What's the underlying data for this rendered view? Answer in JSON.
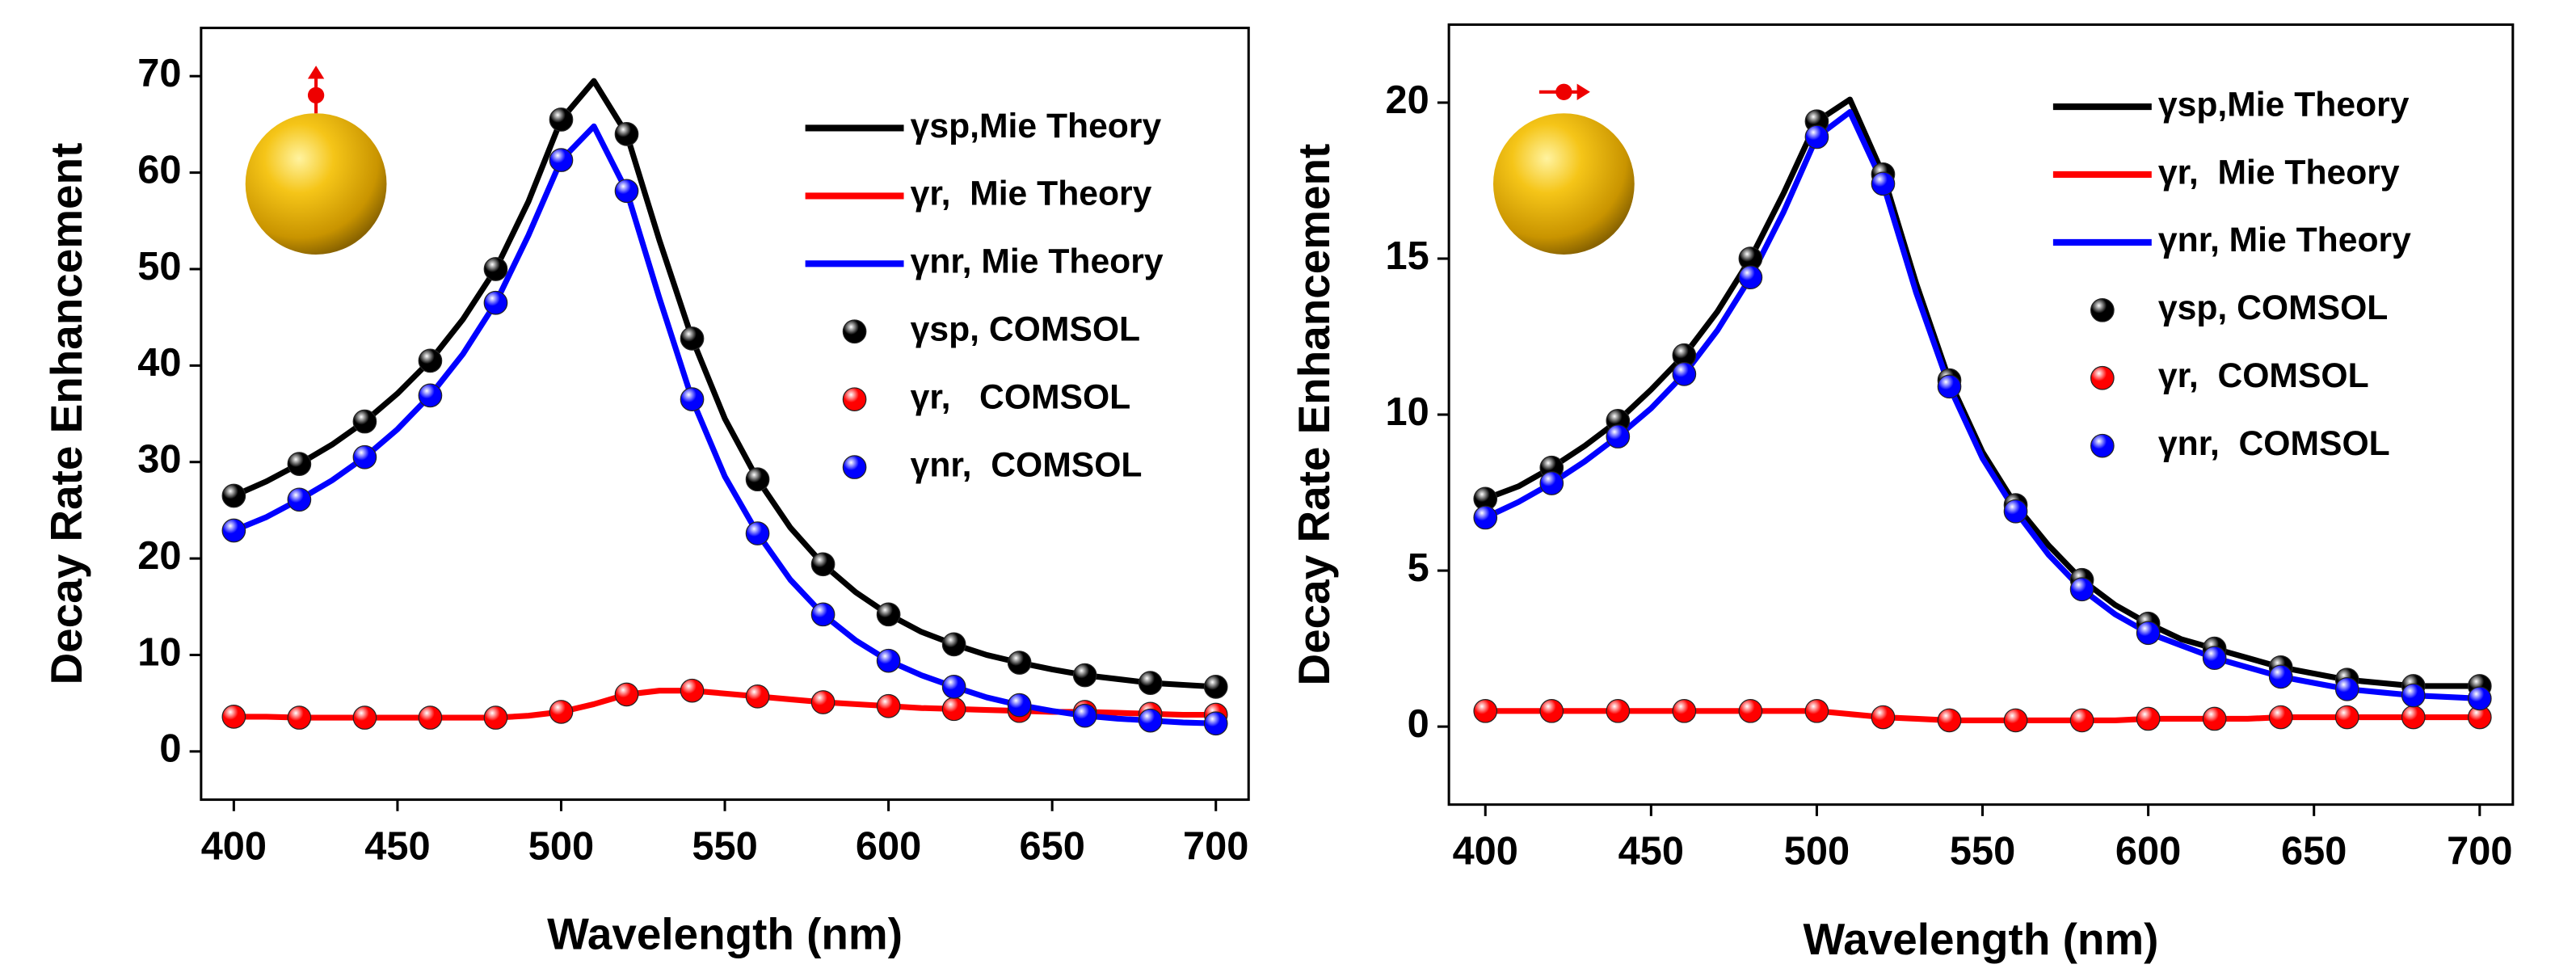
{
  "chart_data": [
    {
      "type": "line",
      "ylabel": "Decay Rate Enhancement",
      "xlabel": "Wavelength (nm)",
      "xlim": [
        390,
        710
      ],
      "ylim": [
        -5,
        75
      ],
      "xticks": [
        400,
        450,
        500,
        550,
        600,
        650,
        700
      ],
      "yticks": [
        0,
        10,
        20,
        30,
        40,
        50,
        60,
        70
      ],
      "legend": "upper right",
      "series": [
        {
          "name": "γsp,Mie Theory",
          "mode": "line",
          "color": "#000000",
          "x": [
            400,
            410,
            420,
            430,
            440,
            450,
            460,
            470,
            480,
            490,
            500,
            510,
            520,
            530,
            540,
            550,
            560,
            570,
            580,
            590,
            600,
            610,
            620,
            630,
            640,
            650,
            660,
            670,
            680,
            690,
            700
          ],
          "values": [
            26.5,
            28,
            29.8,
            31.8,
            34.2,
            37.1,
            40.5,
            44.8,
            50,
            57,
            65.5,
            69.5,
            64,
            53,
            42.8,
            34.5,
            28.2,
            23.2,
            19.4,
            16.5,
            14.2,
            12.4,
            11.1,
            10,
            9.2,
            8.5,
            7.9,
            7.5,
            7.1,
            6.9,
            6.7
          ]
        },
        {
          "name": "γr,  Mie Theory",
          "mode": "line",
          "color": "#ff0000",
          "x": [
            400,
            410,
            420,
            430,
            440,
            450,
            460,
            470,
            480,
            490,
            500,
            510,
            520,
            530,
            540,
            550,
            560,
            570,
            580,
            590,
            600,
            610,
            620,
            630,
            640,
            650,
            660,
            670,
            680,
            690,
            700
          ],
          "values": [
            3.6,
            3.6,
            3.5,
            3.5,
            3.5,
            3.5,
            3.5,
            3.5,
            3.5,
            3.7,
            4.1,
            4.9,
            5.9,
            6.3,
            6.3,
            6,
            5.7,
            5.4,
            5.1,
            4.9,
            4.7,
            4.5,
            4.4,
            4.3,
            4.2,
            4.1,
            4.1,
            4,
            3.9,
            3.8,
            3.8
          ]
        },
        {
          "name": "γnr, Mie Theory",
          "mode": "line",
          "color": "#0000ff",
          "x": [
            400,
            410,
            420,
            430,
            440,
            450,
            460,
            470,
            480,
            490,
            500,
            510,
            520,
            530,
            540,
            550,
            560,
            570,
            580,
            590,
            600,
            610,
            620,
            630,
            640,
            650,
            660,
            670,
            680,
            690,
            700
          ],
          "values": [
            22.9,
            24.3,
            26.1,
            28.1,
            30.5,
            33.4,
            36.9,
            41.2,
            46.5,
            53.5,
            61.3,
            64.8,
            58.1,
            47,
            36.5,
            28.5,
            22.6,
            17.8,
            14.2,
            11.5,
            9.4,
            7.9,
            6.7,
            5.6,
            4.8,
            4.2,
            3.7,
            3.4,
            3.2,
            3,
            2.9
          ]
        },
        {
          "name": "γsp, COMSOL",
          "mode": "markers",
          "color": "#000000",
          "x": [
            400,
            420,
            440,
            460,
            480,
            500,
            520,
            540,
            560,
            580,
            600,
            620,
            640,
            660,
            680,
            700
          ],
          "values": [
            26.5,
            29.8,
            34.2,
            40.5,
            50,
            65.5,
            64,
            42.8,
            28.2,
            19.4,
            14.2,
            11.1,
            9.2,
            7.9,
            7.1,
            6.7
          ]
        },
        {
          "name": "γr,   COMSOL",
          "mode": "markers",
          "color": "#ff0000",
          "x": [
            400,
            420,
            440,
            460,
            480,
            500,
            520,
            540,
            560,
            580,
            600,
            620,
            640,
            660,
            680,
            700
          ],
          "values": [
            3.6,
            3.5,
            3.5,
            3.5,
            3.5,
            4.1,
            5.9,
            6.3,
            5.7,
            5.1,
            4.7,
            4.4,
            4.2,
            4.1,
            3.9,
            3.8
          ]
        },
        {
          "name": "γnr,  COMSOL",
          "mode": "markers",
          "color": "#0000ff",
          "x": [
            400,
            420,
            440,
            460,
            480,
            500,
            520,
            540,
            560,
            580,
            600,
            620,
            640,
            660,
            680,
            700
          ],
          "values": [
            22.9,
            26.1,
            30.5,
            36.9,
            46.5,
            61.3,
            58.1,
            36.5,
            22.6,
            14.2,
            9.4,
            6.7,
            4.8,
            3.7,
            3.2,
            2.9
          ]
        }
      ]
    },
    {
      "type": "line",
      "ylabel": "Decay Rate Enhancement",
      "xlabel": "Wavelength (nm)",
      "xlim": [
        389,
        710
      ],
      "ylim": [
        -2.5,
        22.5
      ],
      "xticks": [
        400,
        450,
        500,
        550,
        600,
        650,
        700
      ],
      "yticks": [
        0,
        5,
        10,
        15,
        20
      ],
      "legend": "upper right",
      "series": [
        {
          "name": "γsp,Mie Theory",
          "mode": "line",
          "color": "#000000",
          "x": [
            400,
            410,
            420,
            430,
            440,
            450,
            460,
            470,
            480,
            490,
            500,
            510,
            520,
            530,
            540,
            550,
            560,
            570,
            580,
            590,
            600,
            610,
            620,
            630,
            640,
            650,
            660,
            670,
            680,
            690,
            700
          ],
          "values": [
            7.3,
            7.7,
            8.3,
            9,
            9.8,
            10.8,
            11.9,
            13.3,
            15,
            17.1,
            19.4,
            20.1,
            17.7,
            14.2,
            11.1,
            8.8,
            7.1,
            5.8,
            4.7,
            3.9,
            3.3,
            2.8,
            2.5,
            2.2,
            1.9,
            1.7,
            1.5,
            1.4,
            1.3,
            1.3,
            1.3
          ]
        },
        {
          "name": "γr,  Mie Theory",
          "mode": "line",
          "color": "#ff0000",
          "x": [
            400,
            410,
            420,
            430,
            440,
            450,
            460,
            470,
            480,
            490,
            500,
            510,
            520,
            530,
            540,
            550,
            560,
            570,
            580,
            590,
            600,
            610,
            620,
            630,
            640,
            650,
            660,
            670,
            680,
            690,
            700
          ],
          "values": [
            0.5,
            0.5,
            0.5,
            0.5,
            0.5,
            0.5,
            0.5,
            0.5,
            0.5,
            0.5,
            0.5,
            0.4,
            0.3,
            0.25,
            0.2,
            0.2,
            0.2,
            0.2,
            0.2,
            0.2,
            0.25,
            0.25,
            0.25,
            0.25,
            0.3,
            0.3,
            0.3,
            0.3,
            0.3,
            0.3,
            0.3
          ]
        },
        {
          "name": "γnr, Mie Theory",
          "mode": "line",
          "color": "#0000ff",
          "x": [
            400,
            410,
            420,
            430,
            440,
            450,
            460,
            470,
            480,
            490,
            500,
            510,
            520,
            530,
            540,
            550,
            560,
            570,
            580,
            590,
            600,
            610,
            620,
            630,
            640,
            650,
            660,
            670,
            680,
            690,
            700
          ],
          "values": [
            6.7,
            7.2,
            7.8,
            8.5,
            9.3,
            10.2,
            11.3,
            12.7,
            14.4,
            16.5,
            18.9,
            19.7,
            17.4,
            13.9,
            10.9,
            8.6,
            6.9,
            5.5,
            4.4,
            3.6,
            3,
            2.6,
            2.2,
            1.9,
            1.6,
            1.4,
            1.2,
            1.1,
            1,
            0.95,
            0.9
          ]
        },
        {
          "name": "γsp, COMSOL",
          "mode": "markers",
          "color": "#000000",
          "x": [
            400,
            420,
            440,
            460,
            480,
            500,
            520,
            540,
            560,
            580,
            600,
            620,
            640,
            660,
            680,
            700
          ],
          "values": [
            7.3,
            8.3,
            9.8,
            11.9,
            15,
            19.4,
            17.7,
            11.1,
            7.1,
            4.7,
            3.3,
            2.5,
            1.9,
            1.5,
            1.3,
            1.3
          ]
        },
        {
          "name": "γr,  COMSOL",
          "mode": "markers",
          "color": "#ff0000",
          "x": [
            400,
            420,
            440,
            460,
            480,
            500,
            520,
            540,
            560,
            580,
            600,
            620,
            640,
            660,
            680,
            700
          ],
          "values": [
            0.5,
            0.5,
            0.5,
            0.5,
            0.5,
            0.5,
            0.3,
            0.2,
            0.2,
            0.2,
            0.25,
            0.25,
            0.3,
            0.3,
            0.3,
            0.3
          ]
        },
        {
          "name": "γnr,  COMSOL",
          "mode": "markers",
          "color": "#0000ff",
          "x": [
            400,
            420,
            440,
            460,
            480,
            500,
            520,
            540,
            560,
            580,
            600,
            620,
            640,
            660,
            680,
            700
          ],
          "values": [
            6.7,
            7.8,
            9.3,
            11.3,
            14.4,
            18.9,
            17.4,
            10.9,
            6.9,
            4.4,
            3,
            2.2,
            1.6,
            1.2,
            1,
            0.9
          ]
        }
      ]
    }
  ]
}
